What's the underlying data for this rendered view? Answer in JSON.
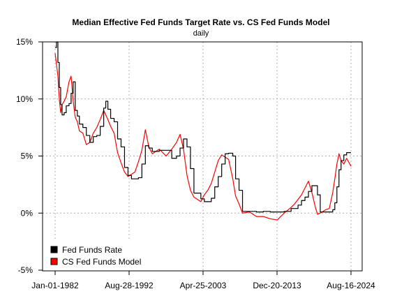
{
  "chart_data": {
    "type": "line",
    "title": "Median Effective Fed Funds Target Rate vs. CS Fed Funds Model",
    "subtitle": "daily",
    "xlabel": "",
    "ylabel": "",
    "x_ticks": [
      "Jan-01-1982",
      "Aug-28-1992",
      "Apr-25-2003",
      "Dec-20-2013",
      "Aug-16-2024"
    ],
    "y_ticks": [
      "15%",
      "10%",
      "5%",
      "0%",
      "-5%"
    ],
    "ylim": [
      -5,
      15
    ],
    "xlim": [
      1982.0,
      2024.63
    ],
    "grid": true,
    "legend_position": "bottom-left",
    "series": [
      {
        "name": "Fed Funds Rate",
        "color": "#000000",
        "x": [
          1982.0,
          1982.2,
          1982.4,
          1982.6,
          1982.8,
          1983.0,
          1983.3,
          1983.6,
          1984.0,
          1984.3,
          1984.6,
          1984.9,
          1985.2,
          1985.5,
          1986.0,
          1986.5,
          1987.0,
          1987.5,
          1988.0,
          1988.5,
          1989.0,
          1989.3,
          1989.6,
          1990.0,
          1990.5,
          1991.0,
          1991.5,
          1992.0,
          1992.5,
          1993.0,
          1994.0,
          1994.5,
          1995.0,
          1995.5,
          1996.0,
          1997.0,
          1998.0,
          1998.8,
          1999.5,
          2000.0,
          2000.5,
          2001.0,
          2001.5,
          2002.0,
          2003.0,
          2003.5,
          2004.0,
          2004.5,
          2005.0,
          2005.5,
          2006.0,
          2006.5,
          2007.0,
          2007.6,
          2008.0,
          2008.5,
          2009.0,
          2010.0,
          2011.0,
          2012.0,
          2013.0,
          2014.0,
          2015.0,
          2016.0,
          2016.5,
          2017.0,
          2017.5,
          2018.0,
          2018.5,
          2019.0,
          2019.5,
          2019.8,
          2020.2,
          2021.0,
          2022.0,
          2022.3,
          2022.6,
          2022.9,
          2023.2,
          2023.6,
          2024.0,
          2024.63
        ],
        "values": [
          14.5,
          15.0,
          13.2,
          11.0,
          9.5,
          8.6,
          8.8,
          9.4,
          9.6,
          10.5,
          11.5,
          9.0,
          8.5,
          7.8,
          7.5,
          6.8,
          6.2,
          6.7,
          6.8,
          7.6,
          9.2,
          9.8,
          9.1,
          8.3,
          8.0,
          6.5,
          5.8,
          4.0,
          3.3,
          3.0,
          3.1,
          4.3,
          5.9,
          5.7,
          5.4,
          5.5,
          5.5,
          4.8,
          5.0,
          5.7,
          6.5,
          5.8,
          3.9,
          1.75,
          1.25,
          1.0,
          1.0,
          1.3,
          2.3,
          3.2,
          4.3,
          5.2,
          5.25,
          5.0,
          3.0,
          2.0,
          0.15,
          0.15,
          0.1,
          0.15,
          0.1,
          0.1,
          0.15,
          0.4,
          0.4,
          0.7,
          1.1,
          1.4,
          1.9,
          2.4,
          2.4,
          1.6,
          0.1,
          0.1,
          0.3,
          0.9,
          2.3,
          3.8,
          4.6,
          5.1,
          5.3,
          5.3
        ]
      },
      {
        "name": "CS Fed Funds Model",
        "color": "#ff0000",
        "x": [
          1982.0,
          1982.2,
          1982.4,
          1982.6,
          1982.8,
          1983.0,
          1983.3,
          1983.6,
          1984.0,
          1984.3,
          1984.6,
          1984.9,
          1985.2,
          1985.5,
          1986.0,
          1986.5,
          1987.0,
          1987.5,
          1988.0,
          1988.5,
          1989.0,
          1989.3,
          1989.6,
          1990.0,
          1990.5,
          1991.0,
          1991.5,
          1992.0,
          1992.5,
          1993.0,
          1993.5,
          1994.0,
          1994.5,
          1995.0,
          1995.5,
          1996.0,
          1997.0,
          1998.0,
          1998.8,
          1999.5,
          2000.0,
          2000.5,
          2001.0,
          2001.5,
          2002.0,
          2003.0,
          2003.5,
          2004.0,
          2004.5,
          2005.0,
          2005.5,
          2006.0,
          2006.5,
          2007.0,
          2007.6,
          2008.0,
          2008.5,
          2009.0,
          2010.0,
          2011.0,
          2012.0,
          2013.0,
          2014.0,
          2015.0,
          2016.0,
          2016.5,
          2017.0,
          2017.5,
          2018.0,
          2018.5,
          2019.0,
          2019.5,
          2019.8,
          2020.2,
          2021.0,
          2021.5,
          2022.0,
          2022.3,
          2022.6,
          2022.9,
          2023.2,
          2023.6,
          2024.0,
          2024.63
        ],
        "values": [
          14.0,
          13.0,
          12.0,
          10.0,
          8.8,
          9.5,
          9.8,
          10.2,
          11.5,
          12.0,
          9.8,
          8.4,
          8.0,
          7.2,
          7.0,
          6.0,
          6.2,
          7.0,
          7.5,
          8.2,
          9.0,
          8.6,
          8.2,
          7.6,
          7.0,
          5.3,
          4.4,
          3.6,
          3.2,
          3.4,
          3.6,
          4.5,
          5.5,
          7.3,
          5.8,
          5.2,
          5.6,
          5.0,
          5.6,
          6.2,
          6.9,
          5.6,
          3.3,
          2.0,
          1.4,
          1.0,
          1.6,
          2.0,
          2.6,
          3.6,
          4.6,
          5.1,
          4.9,
          4.7,
          3.0,
          1.5,
          0.8,
          0.0,
          0.1,
          -0.3,
          -0.3,
          -0.5,
          -0.6,
          0.0,
          0.5,
          0.8,
          1.2,
          1.6,
          2.2,
          2.8,
          1.8,
          0.5,
          -0.1,
          0.0,
          0.3,
          0.4,
          1.8,
          3.0,
          4.3,
          5.2,
          4.6,
          4.3,
          4.8,
          4.1
        ]
      }
    ]
  }
}
